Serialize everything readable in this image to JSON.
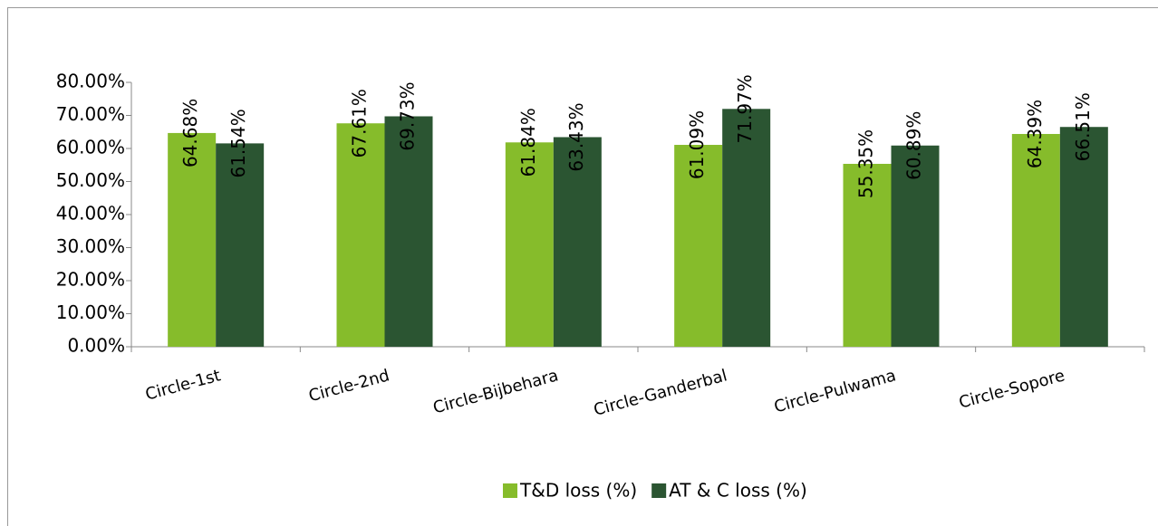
{
  "chart_data": {
    "type": "bar",
    "categories": [
      "Circle-1st",
      "Circle-2nd",
      "Circle-Bijbehara",
      "Circle-Ganderbal",
      "Circle-Pulwama",
      "Circle-Sopore"
    ],
    "series": [
      {
        "name": "T&D loss (%)",
        "color": "#86bc2b",
        "values": [
          64.68,
          67.61,
          61.84,
          61.09,
          55.35,
          64.39
        ],
        "value_labels": [
          "64.68%",
          "67.61%",
          "61.84%",
          "61.09%",
          "55.35%",
          "64.39%"
        ]
      },
      {
        "name": "AT & C loss (%)",
        "color": "#2b5532",
        "values": [
          61.54,
          69.73,
          63.43,
          71.97,
          60.89,
          66.51
        ],
        "value_labels": [
          "61.54%",
          "69.73%",
          "63.43%",
          "71.97%",
          "60.89%",
          "66.51%"
        ]
      }
    ],
    "ylim": [
      0,
      80
    ],
    "yticks": [
      {
        "value": 0,
        "label": "0.00%"
      },
      {
        "value": 10,
        "label": "10.00%"
      },
      {
        "value": 20,
        "label": "20.00%"
      },
      {
        "value": 30,
        "label": "30.00%"
      },
      {
        "value": 40,
        "label": "40.00%"
      },
      {
        "value": 50,
        "label": "50.00%"
      },
      {
        "value": 60,
        "label": "60.00%"
      },
      {
        "value": 70,
        "label": "70.00%"
      },
      {
        "value": 80,
        "label": "80.00%"
      }
    ],
    "legend": "bottom"
  }
}
